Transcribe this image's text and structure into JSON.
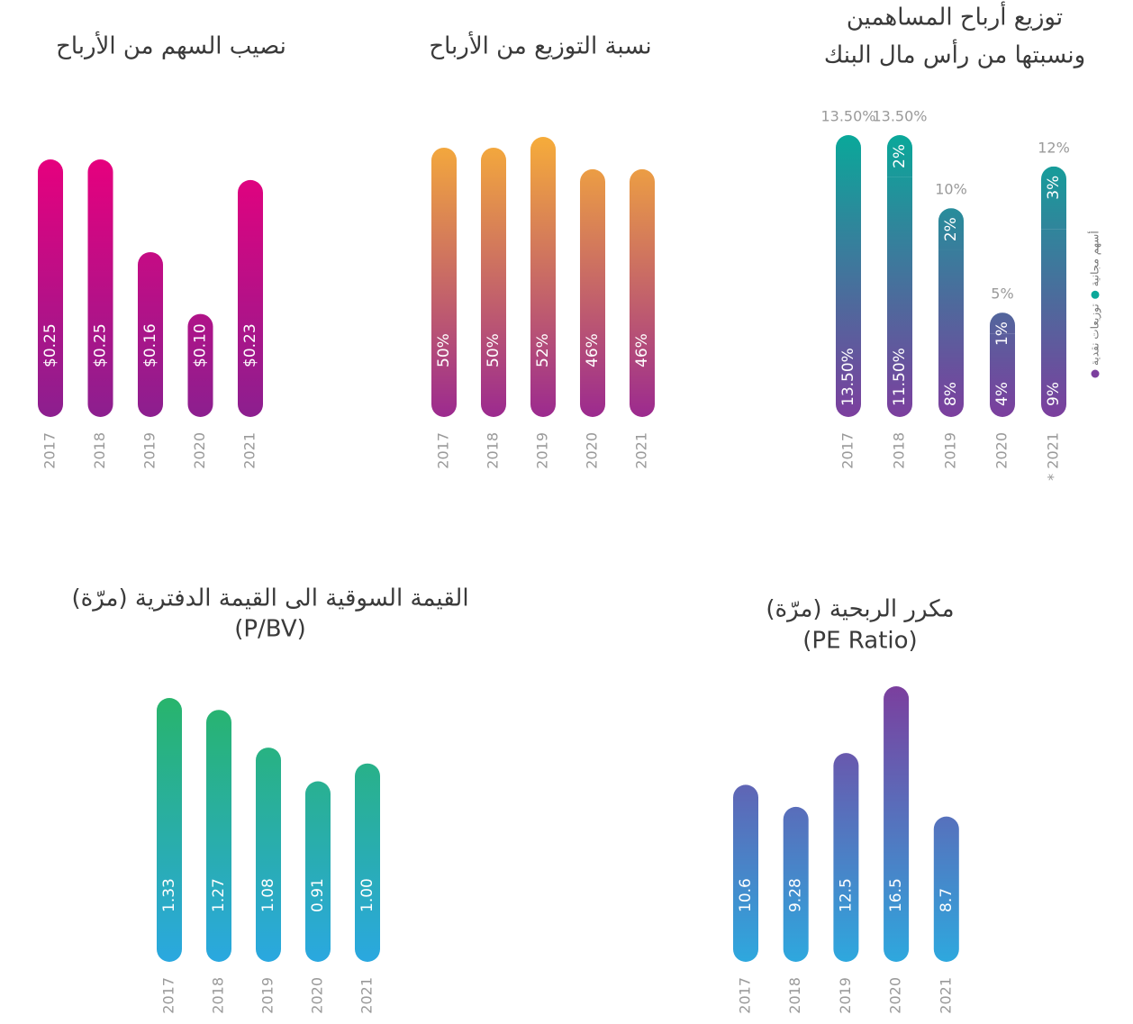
{
  "chart_data": [
    {
      "type": "bar",
      "title": [
        "نصيب السهم من الأرباح"
      ],
      "categories": [
        "2017",
        "2018",
        "2019",
        "2020",
        "2021"
      ],
      "values": [
        0.25,
        0.25,
        0.16,
        0.1,
        0.23
      ],
      "value_labels": [
        "$0.25",
        "$0.25",
        "$0.16",
        "$0.10",
        "$0.23"
      ],
      "colors": [
        "#e6007e",
        "#8c1f8f"
      ]
    },
    {
      "type": "bar",
      "title": [
        "نسبة التوزيع من الأرباح"
      ],
      "categories": [
        "2017",
        "2018",
        "2019",
        "2020",
        "2021"
      ],
      "values": [
        50,
        50,
        52,
        46,
        46
      ],
      "value_labels": [
        "50%",
        "50%",
        "52%",
        "46%",
        "46%"
      ],
      "colors": [
        "#f6ac3a",
        "#9c2a8f"
      ]
    },
    {
      "type": "stacked_bar",
      "title": [
        "توزيع أرباح المساهمين",
        "ونسبتها من رأس مال البنك"
      ],
      "categories": [
        "2017",
        "2018",
        "2019",
        "2020",
        "* 2021"
      ],
      "series": [
        {
          "name": "توزيعات نقدية",
          "color": "#7c3f9e",
          "values": [
            13.5,
            11.5,
            8,
            4,
            9
          ],
          "value_labels": [
            "13.50%",
            "11.50%",
            "8%",
            "4%",
            "9%"
          ]
        },
        {
          "name": "أسهم مجانية",
          "color": "#0aa89a",
          "values": [
            null,
            2,
            2,
            1,
            3
          ],
          "value_labels": [
            null,
            "2%",
            "2%",
            "1%",
            "3%"
          ]
        }
      ],
      "total_labels": [
        "13.50%",
        "13.50%",
        "10%",
        "5%",
        "12%"
      ]
    },
    {
      "type": "bar",
      "title": [
        "القيمة السوقية الى القيمة الدفترية (مرّة)",
        "(P/BV)"
      ],
      "categories": [
        "2017",
        "2018",
        "2019",
        "2020",
        "2021"
      ],
      "values": [
        1.33,
        1.27,
        1.08,
        0.91,
        1.0
      ],
      "value_labels": [
        "1.33",
        "1.27",
        "1.08",
        "0.91",
        "1.00"
      ],
      "colors": [
        "#28b46c",
        "#2aa8e0"
      ]
    },
    {
      "type": "bar",
      "title": [
        "مكرر الربحية (مرّة)",
        "(PE Ratio)"
      ],
      "categories": [
        "2017",
        "2018",
        "2019",
        "2020",
        "2021"
      ],
      "values": [
        10.6,
        9.28,
        12.5,
        16.5,
        8.7
      ],
      "colors": [
        "#7b3f9e",
        "#2ea8de"
      ]
    }
  ]
}
